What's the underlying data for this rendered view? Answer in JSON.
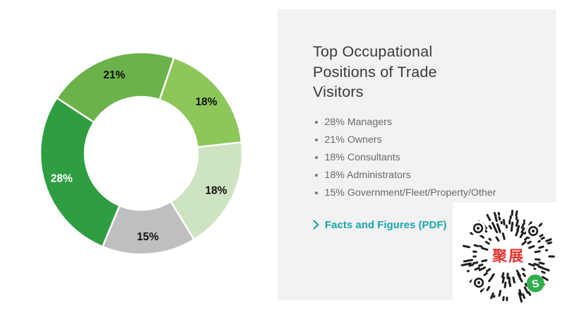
{
  "page": {
    "background": "#ffffff",
    "panel_background": "#f2f2f2"
  },
  "chart_data": {
    "type": "pie",
    "subtype": "donut",
    "title": "Top Occupational Positions of Trade Visitors",
    "start_angle_deg": 202.5,
    "direction": "clockwise",
    "inner_radius_ratio": 0.56,
    "legend_position": "none",
    "categories": [
      "Managers",
      "Owners",
      "Consultants",
      "Administrators",
      "Government/Fleet/Property/Other"
    ],
    "values": [
      28,
      21,
      18,
      18,
      15
    ],
    "segments": [
      {
        "label": "Managers",
        "value": 28,
        "display": "28%",
        "color": "#2f9e41",
        "label_color": "#ffffff"
      },
      {
        "label": "Owners",
        "value": 21,
        "display": "21%",
        "color": "#6cb24a",
        "label_color": "#111111"
      },
      {
        "label": "Consultants",
        "value": 18,
        "display": "18%",
        "color": "#8dc75a",
        "label_color": "#111111"
      },
      {
        "label": "Administrators",
        "value": 18,
        "display": "18%",
        "color": "#cde3c1",
        "label_color": "#111111"
      },
      {
        "label": "Government/Fleet/Property/Other",
        "value": 15,
        "display": "15%",
        "color": "#bfbfbf",
        "label_color": "#111111"
      }
    ]
  },
  "panel": {
    "title_lines": [
      "Top Occupational",
      "Positions of Trade",
      "Visitors"
    ],
    "items": [
      "28% Managers",
      "21% Owners",
      "18% Consultants",
      "18% Administrators",
      "15% Government/Fleet/Property/Other"
    ],
    "link": {
      "label": "Facts and Figures (PDF)",
      "color": "#1aa7ac"
    }
  },
  "qr": {
    "center_text": "聚展",
    "center_text_color": "#e8322e",
    "dash_color": "#1f1f1f",
    "logo_color": "#2fae4d",
    "logo_letter": "S"
  }
}
